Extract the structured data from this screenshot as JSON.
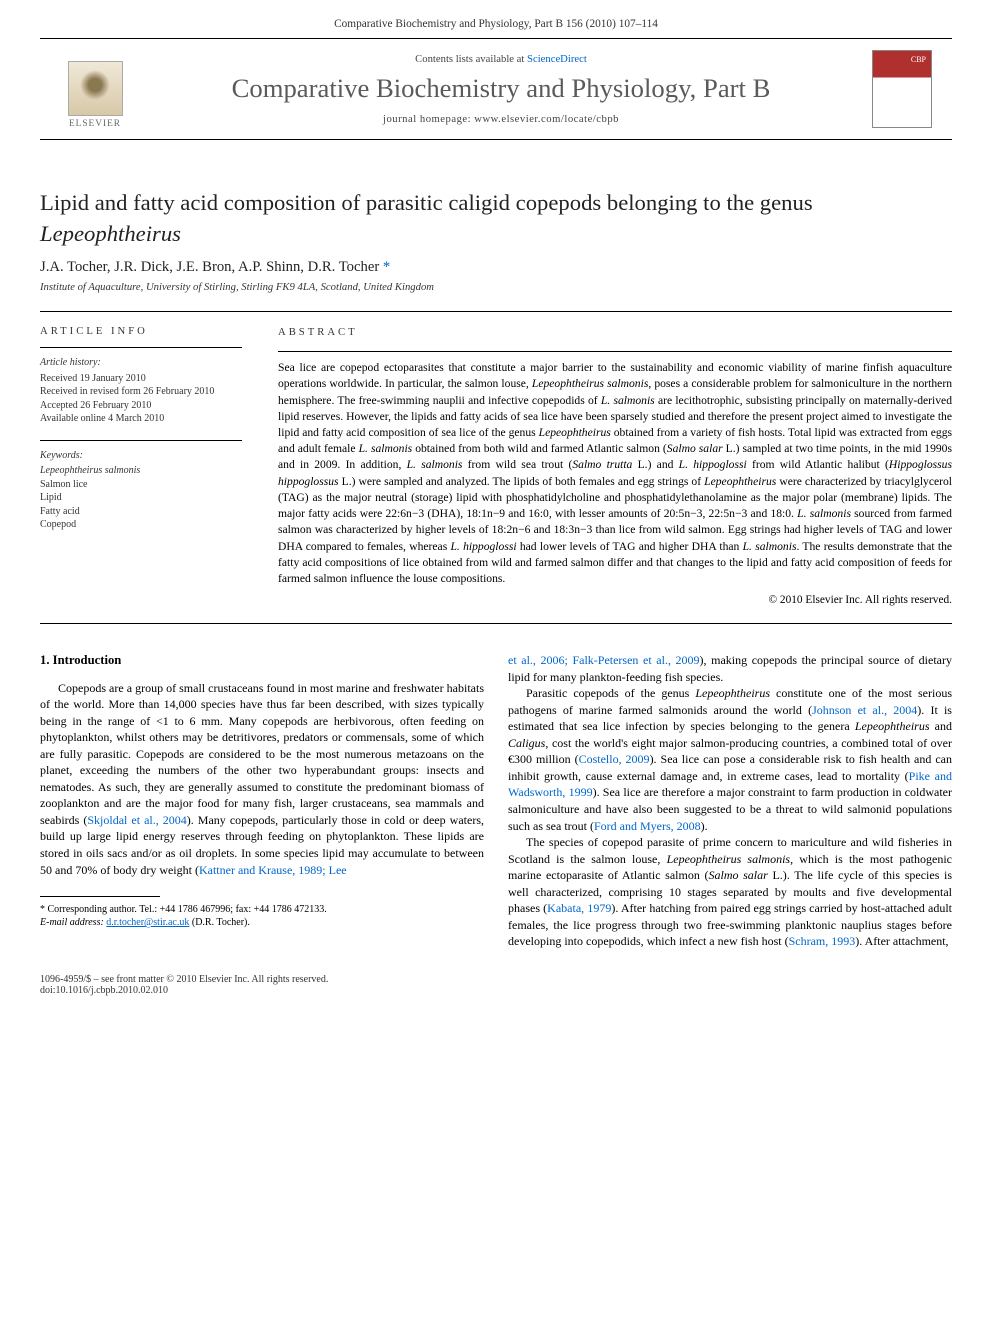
{
  "header": {
    "running_head": "Comparative Biochemistry and Physiology, Part B 156 (2010) 107–114"
  },
  "banner": {
    "contents_prefix": "Contents lists available at ",
    "contents_link": "ScienceDirect",
    "journal_name": "Comparative Biochemistry and Physiology, Part B",
    "homepage_prefix": "journal homepage: ",
    "homepage_url": "www.elsevier.com/locate/cbpb",
    "publisher_label": "ELSEVIER"
  },
  "article": {
    "title_pre": "Lipid and fatty acid composition of parasitic caligid copepods belonging to the genus ",
    "title_genus": "Lepeophtheirus",
    "authors": "J.A. Tocher, J.R. Dick, J.E. Bron, A.P. Shinn, D.R. Tocher ",
    "corr_mark": "*",
    "affiliation": "Institute of Aquaculture, University of Stirling, Stirling FK9 4LA, Scotland, United Kingdom"
  },
  "meta": {
    "info_heading": "article info",
    "history_label": "Article history:",
    "received": "Received 19 January 2010",
    "revised": "Received in revised form 26 February 2010",
    "accepted": "Accepted 26 February 2010",
    "online": "Available online 4 March 2010",
    "keywords_label": "Keywords:",
    "keywords": [
      "Lepeophtheirus salmonis",
      "Salmon lice",
      "Lipid",
      "Fatty acid",
      "Copepod"
    ]
  },
  "abstract": {
    "heading": "abstract",
    "text_parts": [
      "Sea lice are copepod ectoparasites that constitute a major barrier to the sustainability and economic viability of marine finfish aquaculture operations worldwide. In particular, the salmon louse, ",
      "Lepeophtheirus salmonis",
      ", poses a considerable problem for salmoniculture in the northern hemisphere. The free-swimming nauplii and infective copepodids of ",
      "L. salmonis",
      " are lecithotrophic, subsisting principally on maternally-derived lipid reserves. However, the lipids and fatty acids of sea lice have been sparsely studied and therefore the present project aimed to investigate the lipid and fatty acid composition of sea lice of the genus ",
      "Lepeophtheirus",
      " obtained from a variety of fish hosts. Total lipid was extracted from eggs and adult female ",
      "L. salmonis",
      " obtained from both wild and farmed Atlantic salmon (",
      "Salmo salar",
      " L.) sampled at two time points, in the mid 1990s and in 2009. In addition, ",
      "L. salmonis",
      " from wild sea trout (",
      "Salmo trutta",
      " L.) and ",
      "L. hippoglossi",
      " from wild Atlantic halibut (",
      "Hippoglossus hippoglossus",
      " L.) were sampled and analyzed. The lipids of both females and egg strings of ",
      "Lepeophtheirus",
      " were characterized by triacylglycerol (TAG) as the major neutral (storage) lipid with phosphatidylcholine and phosphatidylethanolamine as the major polar (membrane) lipids. The major fatty acids were 22:6n−3 (DHA), 18:1n−9 and 16:0, with lesser amounts of 20:5n−3, 22:5n−3 and 18:0. ",
      "L. salmonis",
      " sourced from farmed salmon was characterized by higher levels of 18:2n−6 and 18:3n−3 than lice from wild salmon. Egg strings had higher levels of TAG and lower DHA compared to females, whereas ",
      "L. hippoglossi",
      " had lower levels of TAG and higher DHA than ",
      "L. salmonis",
      ". The results demonstrate that the fatty acid compositions of lice obtained from wild and farmed salmon differ and that changes to the lipid and fatty acid composition of feeds for farmed salmon influence the louse compositions."
    ],
    "copyright": "© 2010 Elsevier Inc. All rights reserved."
  },
  "body": {
    "section_heading": "1. Introduction",
    "col1_p1_parts": [
      "Copepods are a group of small crustaceans found in most marine and freshwater habitats of the world. More than 14,000 species have thus far been described, with sizes typically being in the range of <1 to 6 mm. Many copepods are herbivorous, often feeding on phytoplankton, whilst others may be detritivores, predators or commensals, some of which are fully parasitic. Copepods are considered to be the most numerous metazoans on the planet, exceeding the numbers of the other two hyperabundant groups: insects and nematodes. As such, they are generally assumed to constitute the predominant biomass of zooplankton and are the major food for many fish, larger crustaceans, sea mammals and seabirds (",
      "Skjoldal et al., 2004",
      "). Many copepods, particularly those in cold or deep waters, build up large lipid energy reserves through feeding on phytoplankton. These lipids are stored in oils sacs and/or as oil droplets. In some species lipid may accumulate to between 50 and 70% of body dry weight (",
      "Kattner and Krause, 1989; Lee"
    ],
    "col2_p0_parts": [
      "et al., 2006; Falk-Petersen et al., 2009",
      "), making copepods the principal source of dietary lipid for many plankton-feeding fish species."
    ],
    "col2_p1_parts": [
      "Parasitic copepods of the genus ",
      "Lepeophtheirus",
      " constitute one of the most serious pathogens of marine farmed salmonids around the world (",
      "Johnson et al., 2004",
      "). It is estimated that sea lice infection by species belonging to the genera ",
      "Lepeophtheirus",
      " and ",
      "Caligus",
      ", cost the world's eight major salmon-producing countries, a combined total of over €300 million (",
      "Costello, 2009",
      "). Sea lice can pose a considerable risk to fish health and can inhibit growth, cause external damage and, in extreme cases, lead to mortality (",
      "Pike and Wadsworth, 1999",
      "). Sea lice are therefore a major constraint to farm production in coldwater salmoniculture and have also been suggested to be a threat to wild salmonid populations such as sea trout (",
      "Ford and Myers, 2008",
      ")."
    ],
    "col2_p2_parts": [
      "The species of copepod parasite of prime concern to mariculture and wild fisheries in Scotland is the salmon louse, ",
      "Lepeophtheirus salmonis",
      ", which is the most pathogenic marine ectoparasite of Atlantic salmon (",
      "Salmo salar",
      " L.). The life cycle of this species is well characterized, comprising 10 stages separated by moults and five developmental phases (",
      "Kabata, 1979",
      "). After hatching from paired egg strings carried by host-attached adult females, the lice progress through two free-swimming planktonic nauplius stages before developing into copepodids, which infect a new fish host (",
      "Schram, 1993",
      "). After attachment,"
    ]
  },
  "footnote": {
    "corr_label": "* Corresponding author. Tel.: +44 1786 467996; fax: +44 1786 472133.",
    "email_label": "E-mail address: ",
    "email": "d.r.tocher@stir.ac.uk",
    "email_suffix": " (D.R. Tocher)."
  },
  "footer": {
    "left_line1": "1096-4959/$ – see front matter © 2010 Elsevier Inc. All rights reserved.",
    "left_line2": "doi:10.1016/j.cbpb.2010.02.010"
  },
  "colors": {
    "link": "#0066cc",
    "text": "#000000",
    "muted": "#333333",
    "journal_name": "#5a5a5a"
  }
}
